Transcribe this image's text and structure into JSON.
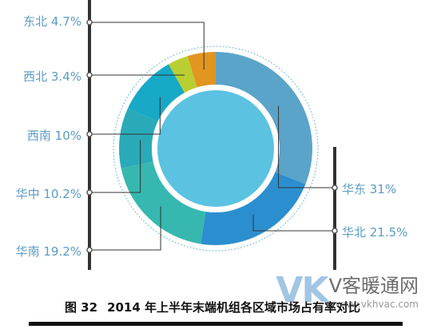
{
  "chart_data": {
    "type": "pie",
    "variant": "donut",
    "categories": [
      "华东",
      "华北",
      "华南",
      "华中",
      "西南",
      "西北",
      "东北"
    ],
    "values": [
      31,
      21.5,
      19.2,
      10.2,
      10,
      3.4,
      4.7
    ],
    "labels": [
      "华东 31%",
      "华北 21.5%",
      "华南 19.2%",
      "华中 10.2%",
      "西南 10%",
      "西北 3.4%",
      "东北 4.7%"
    ],
    "colors": [
      "#5aa4c9",
      "#2b8fcf",
      "#36b8b0",
      "#2aaab8",
      "#17a9c6",
      "#b9cf31",
      "#e2951f"
    ],
    "center_color": "#5bc2e2",
    "title": "图 32   2014 年上半年末端机组各区域市场占有率对比",
    "legend": "none"
  },
  "caption": {
    "number": "图 32",
    "text": "2014 年上半年末端机组各区域市场占有率对比"
  },
  "watermark": {
    "brand": "VK",
    "name": "V客暖通网",
    "url": "www.vkhvac.com"
  }
}
